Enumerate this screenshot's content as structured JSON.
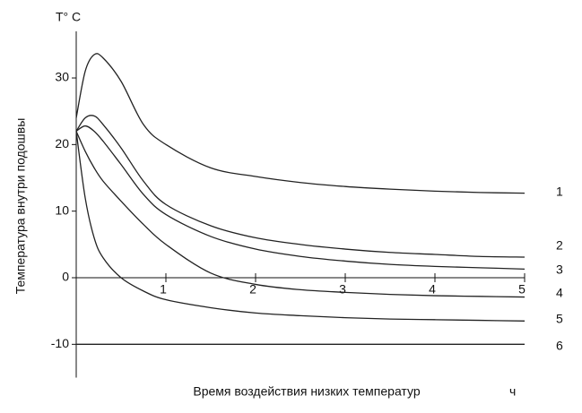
{
  "chart_data": {
    "type": "line",
    "title": "T° C",
    "y_label": "Температура внутри подошвы",
    "x_label": "Время воздействия низких температур",
    "x_unit": "ч",
    "x": [
      0,
      0.1,
      0.2,
      0.3,
      0.5,
      0.75,
      1,
      1.5,
      2,
      2.5,
      3,
      3.5,
      4,
      4.5,
      5
    ],
    "series": [
      {
        "name": "1",
        "color": "#222222",
        "values": [
          24,
          31,
          33.5,
          33,
          29.5,
          23,
          20,
          16.5,
          15.2,
          14.3,
          13.7,
          13.3,
          13,
          12.8,
          12.7
        ]
      },
      {
        "name": "2",
        "color": "#222222",
        "values": [
          22,
          24,
          24.3,
          23,
          19.5,
          14.5,
          11,
          7.8,
          6,
          5,
          4.3,
          3.8,
          3.5,
          3.2,
          3.1
        ]
      },
      {
        "name": "3",
        "color": "#222222",
        "values": [
          22,
          22.8,
          22,
          20.5,
          17,
          12.5,
          9.5,
          6.2,
          4.3,
          3.2,
          2.5,
          2,
          1.7,
          1.5,
          1.3
        ]
      },
      {
        "name": "4",
        "color": "#222222",
        "values": [
          22,
          19,
          16.5,
          14.5,
          11.5,
          8,
          5,
          0.7,
          -1,
          -1.8,
          -2.2,
          -2.5,
          -2.7,
          -2.8,
          -2.9
        ]
      },
      {
        "name": "5",
        "color": "#222222",
        "values": [
          22,
          12,
          6,
          3,
          0,
          -2,
          -3.3,
          -4.5,
          -5.3,
          -5.7,
          -6,
          -6.2,
          -6.3,
          -6.4,
          -6.5
        ]
      },
      {
        "name": "6",
        "color": "#222222",
        "values": [
          -10,
          -10,
          -10,
          -10,
          -10,
          -10,
          -10,
          -10,
          -10,
          -10,
          -10,
          -10,
          -10,
          -10,
          -10
        ]
      }
    ],
    "xlim": [
      0,
      5
    ],
    "xticks": [
      1,
      2,
      3,
      4,
      5
    ],
    "ylim": [
      -15,
      37
    ],
    "yticks": [
      -10,
      0,
      10,
      20,
      30
    ]
  }
}
